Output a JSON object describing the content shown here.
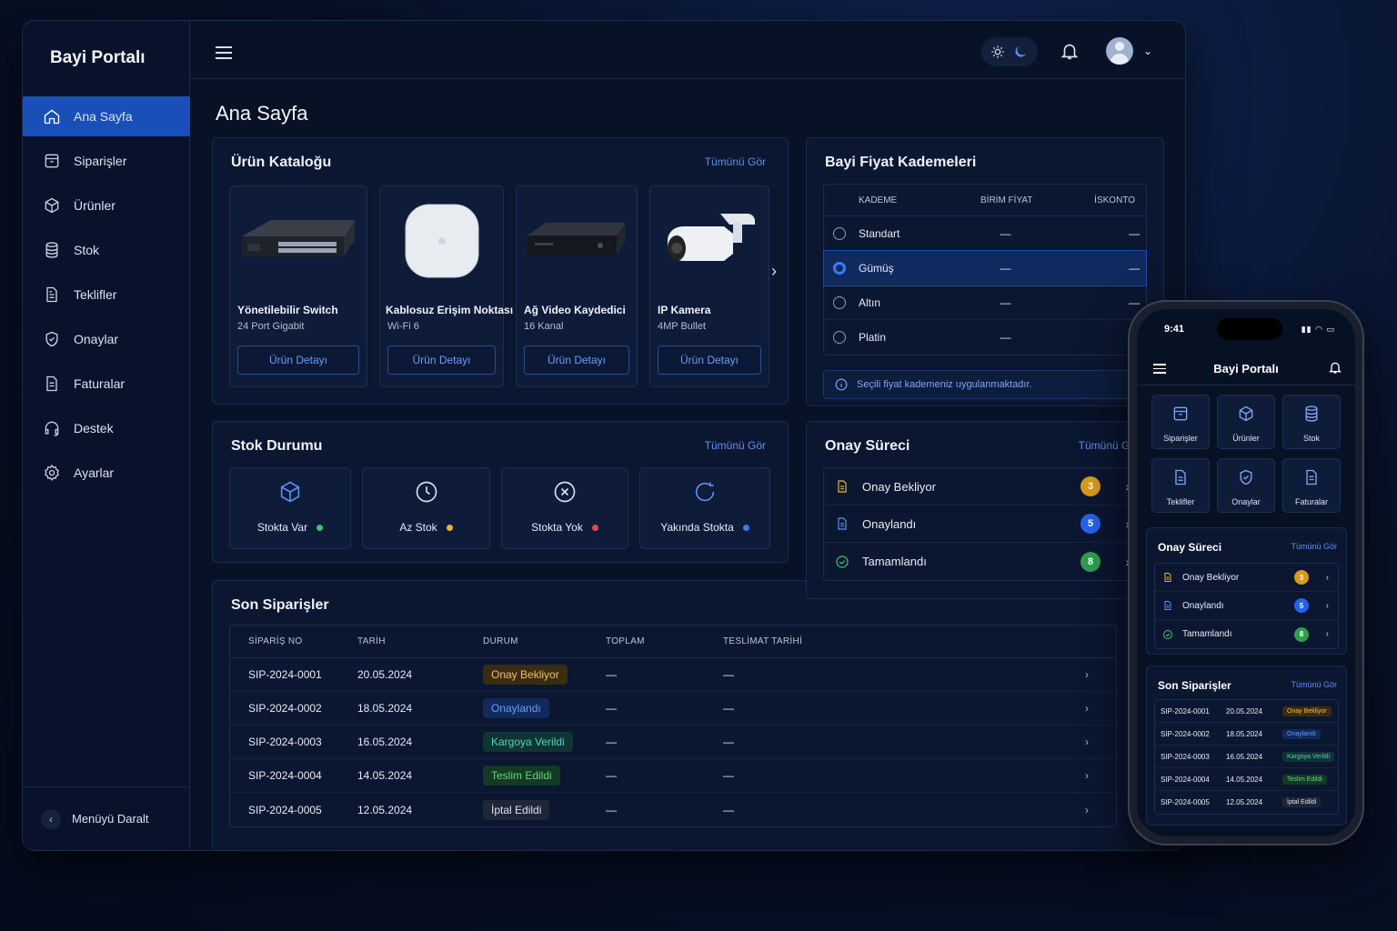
{
  "app": {
    "brand": "Bayi Portalı"
  },
  "sidebar": {
    "items": [
      {
        "label": "Ana Sayfa",
        "icon": "home-icon"
      },
      {
        "label": "Siparişler",
        "icon": "box-icon"
      },
      {
        "label": "Ürünler",
        "icon": "cube-icon"
      },
      {
        "label": "Stok",
        "icon": "database-icon"
      },
      {
        "label": "Teklifler",
        "icon": "document-icon"
      },
      {
        "label": "Onaylar",
        "icon": "shield-check-icon"
      },
      {
        "label": "Faturalar",
        "icon": "invoice-icon"
      },
      {
        "label": "Destek",
        "icon": "headset-icon"
      },
      {
        "label": "Ayarlar",
        "icon": "gear-icon"
      }
    ],
    "collapse_label": "Menüyü Daralt"
  },
  "page": {
    "title": "Ana Sayfa"
  },
  "catalog": {
    "title": "Ürün Kataloğu",
    "view_all": "Tümünü Gör",
    "products": [
      {
        "name": "Yönetilebilir Switch",
        "sub": "24 Port Gigabit",
        "button": "Ürün Detayı"
      },
      {
        "name": "Kablosuz Erişim Noktası",
        "sub": "Wi-Fi 6",
        "button": "Ürün Detayı"
      },
      {
        "name": "Ağ Video Kaydedici",
        "sub": "16 Kanal",
        "button": "Ürün Detayı"
      },
      {
        "name": "IP Kamera",
        "sub": "4MP Bullet",
        "button": "Ürün Detayı"
      }
    ]
  },
  "stock": {
    "title": "Stok Durumu",
    "view_all": "Tümünü Gör",
    "items": [
      {
        "label": "Stokta Var",
        "color": "#3fc46b"
      },
      {
        "label": "Az Stok",
        "color": "#e9b23a"
      },
      {
        "label": "Stokta Yok",
        "color": "#e5484d"
      },
      {
        "label": "Yakında Stokta",
        "color": "#3a7bf0"
      }
    ]
  },
  "orders": {
    "title": "Son Siparişler",
    "headers": [
      "SİPARİŞ NO",
      "TARİH",
      "DURUM",
      "TOPLAM",
      "TESLİMAT TARİHİ"
    ],
    "rows": [
      {
        "no": "SIP-2024-0001",
        "date": "20.05.2024",
        "status": "Onay Bekliyor",
        "total": "—",
        "delivery": "—"
      },
      {
        "no": "SIP-2024-0002",
        "date": "18.05.2024",
        "status": "Onaylandı",
        "total": "—",
        "delivery": "—"
      },
      {
        "no": "SIP-2024-0003",
        "date": "16.05.2024",
        "status": "Kargoya Verildi",
        "total": "—",
        "delivery": "—"
      },
      {
        "no": "SIP-2024-0004",
        "date": "14.05.2024",
        "status": "Teslim Edildi",
        "total": "—",
        "delivery": "—"
      },
      {
        "no": "SIP-2024-0005",
        "date": "12.05.2024",
        "status": "İptal Edildi",
        "total": "—",
        "delivery": "—"
      }
    ]
  },
  "pricing": {
    "title": "Bayi Fiyat Kademeleri",
    "headers": [
      "KADEME",
      "BİRİM FİYAT",
      "İSKONTO"
    ],
    "rows": [
      {
        "tier": "Standart",
        "price": "—",
        "discount": "—"
      },
      {
        "tier": "Gümüş",
        "price": "—",
        "discount": "—"
      },
      {
        "tier": "Altın",
        "price": "—",
        "discount": "—"
      },
      {
        "tier": "Platin",
        "price": "—",
        "discount": "—"
      }
    ],
    "selected_tier": "Gümüş",
    "info": "Seçili fiyat kademeniz uygulanmaktadır."
  },
  "approval": {
    "title": "Onay Süreci",
    "view_all": "Tümünü Gör",
    "items": [
      {
        "label": "Onay Bekliyor",
        "count": "3",
        "color": "#d99a1c"
      },
      {
        "label": "Onaylandı",
        "count": "5",
        "color": "#2563eb"
      },
      {
        "label": "Tamamlandı",
        "count": "8",
        "color": "#2f9e4f"
      }
    ]
  },
  "status_colors": {
    "Onay Bekliyor": {
      "bg": "#3a2c10",
      "fg": "#f0c35a"
    },
    "Onaylandı": {
      "bg": "#112a5c",
      "fg": "#6c9bf5"
    },
    "Kargoya Verildi": {
      "bg": "#0f3434",
      "fg": "#4fd1c5"
    },
    "Teslim Edildi": {
      "bg": "#133a22",
      "fg": "#5fd67f"
    },
    "İptal Edildi": {
      "bg": "#1f2638",
      "fg": "#dbe2f0"
    }
  },
  "phone": {
    "time": "9:41",
    "title": "Bayi Portalı",
    "tiles": [
      "Siparişler",
      "Ürünler",
      "Stok",
      "Teklifler",
      "Onaylar",
      "Faturalar"
    ],
    "approval_title": "Onay Süreci",
    "orders_title": "Son Siparişler",
    "view_all": "Tümünü Gör"
  }
}
